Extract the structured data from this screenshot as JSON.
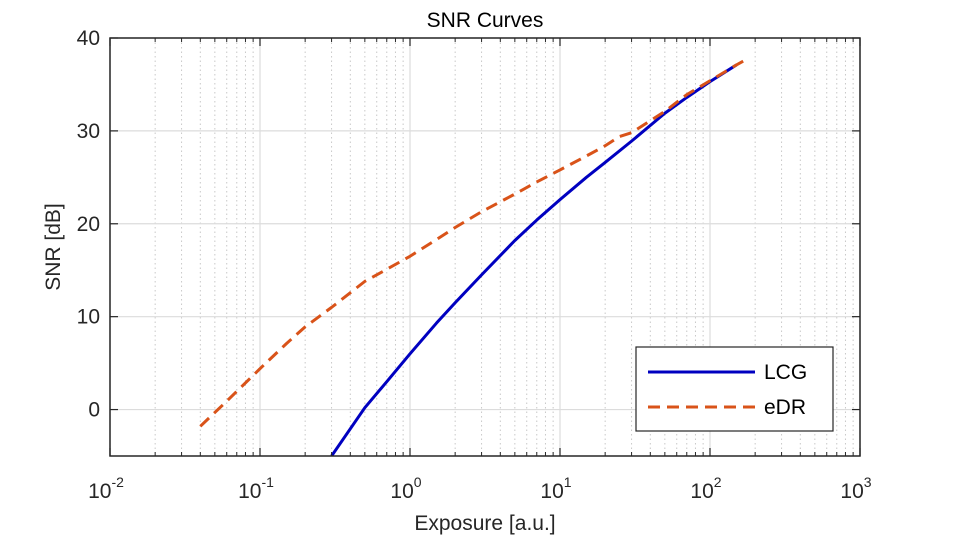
{
  "chart_data": {
    "type": "line",
    "title": "SNR Curves",
    "xlabel": "Exposure [a.u.]",
    "ylabel": "SNR [dB]",
    "xscale": "log",
    "xlim": [
      0.01,
      1000
    ],
    "ylim": [
      -5,
      40
    ],
    "grid": true,
    "legend_position": "bottom-right",
    "x_ticks": [
      {
        "base": "10",
        "exp": "-2",
        "value": 0.01
      },
      {
        "base": "10",
        "exp": "-1",
        "value": 0.1
      },
      {
        "base": "10",
        "exp": "0",
        "value": 1
      },
      {
        "base": "10",
        "exp": "1",
        "value": 10
      },
      {
        "base": "10",
        "exp": "2",
        "value": 100
      },
      {
        "base": "10",
        "exp": "3",
        "value": 1000
      }
    ],
    "y_ticks": [
      "0",
      "10",
      "20",
      "30",
      "40"
    ],
    "series": [
      {
        "name": "LCG",
        "color": "#0000C0",
        "style": "solid",
        "x": [
          0.3,
          0.5,
          0.7,
          1,
          1.5,
          2,
          3,
          5,
          7,
          10,
          15,
          20,
          30,
          50,
          70,
          100,
          150
        ],
        "y": [
          -5,
          0.2,
          3.0,
          6.0,
          9.3,
          11.5,
          14.5,
          18.2,
          20.4,
          22.6,
          25.0,
          26.6,
          28.9,
          31.9,
          33.6,
          35.3,
          37.1
        ]
      },
      {
        "name": "eDR",
        "color": "#D95319",
        "style": "dashed",
        "x": [
          0.04,
          0.06,
          0.1,
          0.15,
          0.2,
          0.3,
          0.5,
          0.7,
          1,
          1.5,
          2,
          3,
          5,
          7,
          10,
          15,
          20,
          25,
          30,
          50,
          70,
          100,
          150,
          180
        ],
        "y": [
          -1.8,
          0.9,
          4.4,
          7.1,
          8.9,
          11.0,
          13.8,
          15.1,
          16.5,
          18.3,
          19.6,
          21.3,
          23.2,
          24.5,
          25.8,
          27.3,
          28.4,
          29.4,
          29.8,
          32.1,
          33.9,
          35.4,
          37.1,
          37.8
        ]
      }
    ]
  }
}
